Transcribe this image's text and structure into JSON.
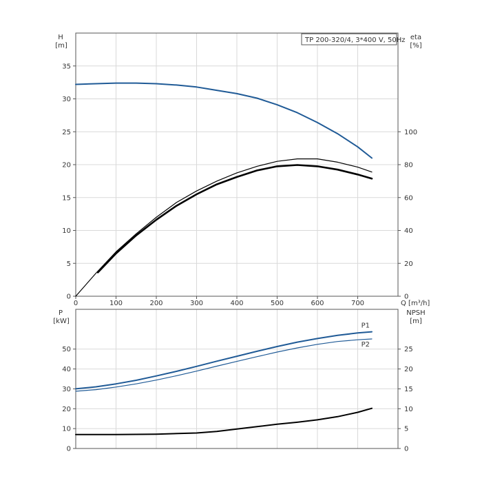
{
  "chart_data": [
    {
      "type": "line",
      "title": "TP 200-320/4, 3*400 V, 50Hz",
      "xlabel": "Q [m³/h]",
      "x_ticks": [
        "0",
        "100",
        "200",
        "300",
        "400",
        "500",
        "600",
        "700"
      ],
      "xlim": [
        0,
        800
      ],
      "y_left": {
        "label_line1": "H",
        "label_line2": "[m]",
        "ticks": [
          "0",
          "5",
          "10",
          "15",
          "20",
          "25",
          "30",
          "35"
        ],
        "range": [
          0,
          40
        ]
      },
      "y_right": {
        "label_line1": "eta",
        "label_line2": "[%]",
        "ticks": [
          "0",
          "20",
          "40",
          "60",
          "80",
          "100"
        ],
        "range": [
          0,
          160
        ]
      },
      "grid": true,
      "colors": {
        "head": "#1f5a96",
        "eta": "#000000",
        "eta_light": "#000000"
      },
      "series": [
        {
          "key": "head",
          "axis": "left",
          "x": [
            0,
            50,
            100,
            150,
            200,
            250,
            300,
            350,
            400,
            450,
            500,
            550,
            600,
            650,
            700,
            735
          ],
          "y": [
            32.2,
            32.3,
            32.4,
            32.4,
            32.3,
            32.1,
            31.8,
            31.3,
            30.8,
            30.1,
            29.1,
            27.9,
            26.4,
            24.7,
            22.7,
            21.0
          ]
        },
        {
          "key": "eta_light",
          "axis": "right",
          "x": [
            0,
            50,
            100,
            150,
            200,
            250,
            300,
            350,
            400,
            450,
            500,
            550,
            600,
            650,
            700,
            735
          ],
          "y": [
            0,
            14,
            27,
            38,
            48,
            57,
            64,
            70,
            75,
            79,
            82,
            83.5,
            83.5,
            81.5,
            78.5,
            75.5
          ]
        },
        {
          "key": "eta",
          "axis": "right",
          "x": [
            55,
            100,
            150,
            200,
            250,
            300,
            350,
            400,
            450,
            500,
            550,
            600,
            650,
            700,
            735
          ],
          "y": [
            14.5,
            26,
            37,
            46.5,
            55,
            62,
            68,
            72.5,
            76.5,
            79,
            79.8,
            79,
            77,
            74,
            71.5
          ]
        }
      ]
    },
    {
      "type": "line",
      "xlim": [
        0,
        800
      ],
      "y_left": {
        "label_line1": "P",
        "label_line2": "[kW]",
        "ticks": [
          "0",
          "10",
          "20",
          "30",
          "40",
          "50"
        ],
        "range": [
          0,
          70
        ]
      },
      "y_right": {
        "label_line1": "NPSH",
        "label_line2": "[m]",
        "ticks": [
          "0",
          "5",
          "10",
          "15",
          "20",
          "25"
        ],
        "range": [
          0,
          35
        ]
      },
      "grid": true,
      "colors": {
        "p1": "#1f5a96",
        "p2": "#1f5a96",
        "npsh": "#000000"
      },
      "series": [
        {
          "name": "P1",
          "key": "p1",
          "axis": "left",
          "x": [
            0,
            50,
            100,
            150,
            200,
            250,
            300,
            350,
            400,
            450,
            500,
            550,
            600,
            650,
            700,
            735
          ],
          "y": [
            30.0,
            31.0,
            32.5,
            34.3,
            36.5,
            38.8,
            41.3,
            43.9,
            46.4,
            48.9,
            51.3,
            53.5,
            55.3,
            56.9,
            58.1,
            58.7
          ]
        },
        {
          "name": "P2",
          "key": "p2",
          "axis": "left",
          "x": [
            0,
            50,
            100,
            150,
            200,
            250,
            300,
            350,
            400,
            450,
            500,
            550,
            600,
            650,
            700,
            735
          ],
          "y": [
            28.8,
            29.6,
            30.9,
            32.5,
            34.4,
            36.6,
            38.9,
            41.4,
            43.8,
            46.2,
            48.5,
            50.6,
            52.4,
            53.8,
            54.7,
            55.1
          ]
        },
        {
          "key": "npsh",
          "axis": "right",
          "x": [
            0,
            50,
            100,
            200,
            300,
            350,
            400,
            450,
            500,
            550,
            600,
            650,
            700,
            735
          ],
          "y": [
            3.5,
            3.5,
            3.5,
            3.6,
            3.9,
            4.3,
            4.9,
            5.5,
            6.1,
            6.6,
            7.2,
            8.0,
            9.1,
            10.1
          ]
        }
      ]
    }
  ]
}
